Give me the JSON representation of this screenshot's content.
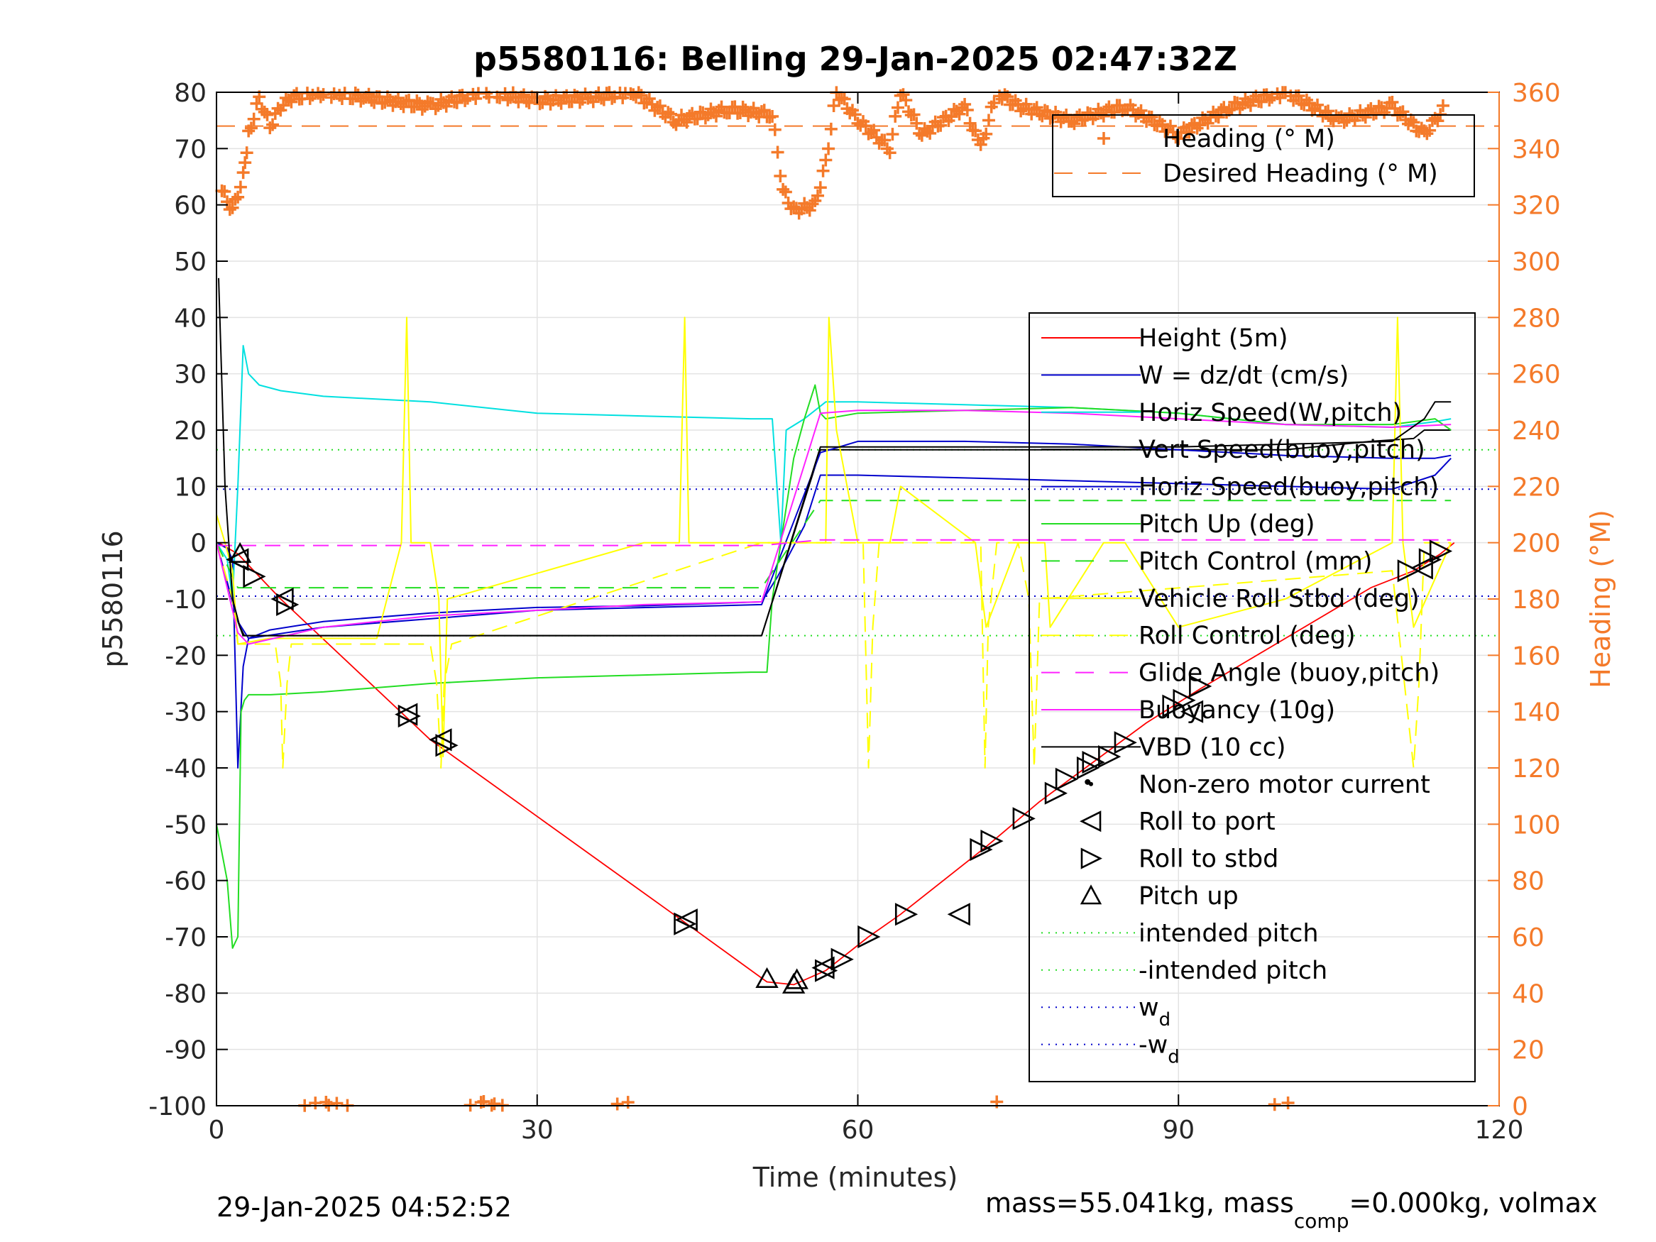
{
  "chart_data": {
    "type": "line",
    "title": "p5580116: Belling 29-Jan-2025 02:47:32Z",
    "xlabel": "Time (minutes)",
    "ylabel": "p5580116",
    "y2label": "Heading (°M)",
    "xlim": [
      0,
      120
    ],
    "ylim": [
      -100,
      80
    ],
    "y2lim": [
      0,
      360
    ],
    "xticks": [
      0,
      30,
      60,
      90,
      120
    ],
    "yticks": [
      -100,
      -90,
      -80,
      -70,
      -60,
      -50,
      -40,
      -30,
      -20,
      -10,
      0,
      10,
      20,
      30,
      40,
      50,
      60,
      70,
      80
    ],
    "y2ticks": [
      0,
      20,
      40,
      60,
      80,
      100,
      120,
      140,
      160,
      180,
      200,
      220,
      240,
      260,
      280,
      300,
      320,
      340,
      360
    ],
    "grid": true,
    "footer_left": "29-Jan-2025 04:52:52",
    "footer_right_main": "mass=55.041kg, mass",
    "footer_right_sub": "comp",
    "footer_right_tail": "=0.000kg, volmax",
    "colors": {
      "heading": "#f47a2a",
      "height": "#ff0000",
      "w": "#0000cc",
      "horiz_w": "#00e0e0",
      "vert_buoy": "#000000",
      "pitch": "#22dd22",
      "roll": "#ffff00",
      "glide": "#ff22ff",
      "vbd": "#000000"
    },
    "legend_heading": [
      {
        "label": "Heading (° M)",
        "style": "plus",
        "color": "#f47a2a"
      },
      {
        "label": "Desired Heading (° M)",
        "style": "dash",
        "color": "#f47a2a"
      }
    ],
    "legend_main": [
      {
        "label": "Height (5m)",
        "style": "solid",
        "color": "#ff0000"
      },
      {
        "label": "W = dz/dt (cm/s)",
        "style": "solid",
        "color": "#0000cc"
      },
      {
        "label": "Horiz Speed(W,pitch)",
        "style": "solid",
        "color": "#00e0e0"
      },
      {
        "label": "Vert Speed(buoy,pitch)",
        "style": "solid",
        "color": "#000000"
      },
      {
        "label": "Horiz Speed(buoy,pitch)",
        "style": "solid",
        "color": "#0000cc"
      },
      {
        "label": "Pitch Up (deg)",
        "style": "solid",
        "color": "#22dd22"
      },
      {
        "label": "Pitch Control (mm)",
        "style": "dash",
        "color": "#22dd22"
      },
      {
        "label": "Vehicle Roll Stbd (deg)",
        "style": "solid",
        "color": "#ffff00"
      },
      {
        "label": "Roll Control (deg)",
        "style": "dash",
        "color": "#ffff00"
      },
      {
        "label": "Glide Angle (buoy,pitch)",
        "style": "dash",
        "color": "#ff22ff"
      },
      {
        "label": "Buoyancy (10g)",
        "style": "solid",
        "color": "#ff22ff"
      },
      {
        "label": "VBD (10 cc)",
        "style": "solid",
        "color": "#000000"
      },
      {
        "label": "Non-zero motor current",
        "style": "dot",
        "color": "#000000"
      },
      {
        "label": "Roll to port",
        "style": "tri-left",
        "color": "#000000"
      },
      {
        "label": "Roll to stbd",
        "style": "tri-right",
        "color": "#000000"
      },
      {
        "label": "Pitch up",
        "style": "tri-up",
        "color": "#000000"
      },
      {
        "label": "intended pitch",
        "style": "dotted",
        "color": "#22dd22"
      },
      {
        "label": "-intended pitch",
        "style": "dotted",
        "color": "#22dd22"
      },
      {
        "label": "w",
        "sub": "d",
        "style": "dotted",
        "color": "#0000cc"
      },
      {
        "label": "-w",
        "sub": "d",
        "style": "dotted",
        "color": "#0000cc"
      }
    ],
    "reference_lines": [
      {
        "name": "intended pitch",
        "y": 16.5
      },
      {
        "name": "-intended pitch",
        "y": -16.5
      },
      {
        "name": "w_d",
        "y": 9.5
      },
      {
        "name": "-w_d",
        "y": -9.5
      }
    ],
    "desired_heading": 348,
    "series": [
      {
        "name": "Height (5m)",
        "x": [
          0.2,
          2,
          6,
          20,
          43.5,
          51.5,
          54,
          57,
          61,
          64,
          72,
          77,
          82,
          87,
          92,
          100,
          108,
          112,
          114.5,
          115.8
        ],
        "y": [
          0,
          -2,
          -10,
          -35,
          -67,
          -78,
          -78.5,
          -76,
          -70,
          -66,
          -54,
          -46,
          -39,
          -32,
          -26,
          -17,
          -8,
          -5,
          -2,
          0
        ]
      },
      {
        "name": "W = dz/dt (cm/s)",
        "x": [
          0,
          1,
          1.5,
          2,
          2.5,
          3,
          5,
          10,
          20,
          30,
          40,
          51,
          52.5,
          55,
          56.5,
          60,
          70,
          80,
          90,
          100,
          110,
          114,
          115.5
        ],
        "y": [
          0,
          -1,
          -3,
          -40,
          -22,
          -17,
          -15.5,
          -14,
          -12.5,
          -11.5,
          -11.2,
          -10.5,
          -6,
          3,
          12,
          12,
          11.5,
          11,
          10.5,
          10,
          9.5,
          12,
          15
        ]
      },
      {
        "name": "Horiz Speed(W,pitch)",
        "x": [
          0,
          1,
          1.5,
          2,
          2.5,
          3,
          4,
          6,
          10,
          20,
          30,
          40,
          50,
          52,
          52.8,
          53.3,
          55,
          57,
          60,
          70,
          80,
          90,
          100,
          110,
          114,
          115.5
        ],
        "y": [
          0,
          -3,
          -10,
          10,
          35,
          30,
          28,
          27,
          26,
          25,
          23,
          22.5,
          22,
          22,
          0,
          20,
          22,
          25,
          25,
          24.5,
          24,
          23,
          21,
          20.5,
          21.5,
          22
        ]
      },
      {
        "name": "Vert Speed(buoy,pitch)",
        "x": [
          0,
          2,
          2.5,
          30,
          51,
          56.5,
          70,
          100,
          108,
          112,
          113,
          115.5
        ],
        "y": [
          0,
          -14,
          -16.5,
          -16.5,
          -16.5,
          16.5,
          16.5,
          16.5,
          18,
          18.5,
          20,
          20
        ]
      },
      {
        "name": "Horiz Speed(buoy,pitch)",
        "x": [
          0,
          2,
          3,
          10,
          30,
          51,
          56.5,
          60,
          70,
          80,
          90,
          100,
          110,
          114,
          115.5
        ],
        "y": [
          0,
          -14,
          -17,
          -15,
          -12,
          -11,
          16,
          18,
          18,
          17.5,
          16.5,
          15.5,
          15,
          15,
          15.5
        ]
      },
      {
        "name": "Pitch Up (deg)",
        "x": [
          0,
          1,
          1.5,
          2,
          2.3,
          2.6,
          3,
          5,
          10,
          20,
          30,
          40,
          50,
          51.5,
          52,
          54,
          55,
          55.5,
          56,
          56.5,
          57,
          60,
          70,
          80,
          90,
          100,
          110,
          114,
          115.5
        ],
        "y": [
          -50,
          -60,
          -72,
          -70,
          -30,
          -28,
          -27,
          -27,
          -26.5,
          -25,
          -24,
          -23.5,
          -23,
          -23,
          -10,
          15,
          22,
          25,
          28,
          23,
          22,
          23,
          23.5,
          24,
          23,
          21,
          21,
          22,
          20
        ]
      },
      {
        "name": "Pitch Control (mm)",
        "x": [
          0,
          2,
          10,
          20,
          30,
          40,
          51,
          56.5,
          70,
          90,
          110,
          115.5
        ],
        "y": [
          0,
          -8,
          -8,
          -8,
          -8,
          -8,
          -8,
          7.5,
          7.5,
          7.5,
          7.5,
          7.5
        ]
      },
      {
        "name": "Vehicle Roll Stbd (deg)",
        "x": [
          0,
          0.8,
          1.5,
          2,
          5,
          15,
          17.3,
          17.8,
          18.2,
          20,
          20.8,
          21.2,
          21.6,
          40,
          43.3,
          43.8,
          44.2,
          50,
          57,
          57.3,
          58,
          60,
          63,
          64,
          71,
          72,
          75,
          77.5,
          78,
          83,
          85,
          90,
          100,
          110,
          110.5,
          111,
          112,
          115.5
        ],
        "y": [
          5,
          0,
          -5,
          -18,
          -17,
          -17,
          0,
          40,
          0,
          0,
          -10,
          -38,
          -10,
          0,
          0,
          40,
          0,
          0,
          0,
          40,
          20,
          0,
          0,
          10,
          0,
          -15,
          0,
          0,
          -15,
          0,
          0,
          -15,
          -10,
          0,
          40,
          0,
          -15,
          0
        ]
      },
      {
        "name": "Roll Control (deg)",
        "x": [
          0,
          1.5,
          2,
          5.5,
          6,
          6.2,
          6.6,
          7,
          20,
          20.6,
          21,
          21.3,
          22,
          51,
          56.5,
          60.5,
          61,
          61.4,
          62,
          71.5,
          71.9,
          72.2,
          73,
          75,
          76,
          76.5,
          77,
          110,
          112,
          112.5,
          113,
          115.5
        ],
        "y": [
          0,
          -10,
          -18,
          -18,
          -25,
          -40,
          -25,
          -18,
          -18,
          -25,
          -40,
          -25,
          -18,
          0,
          0,
          0,
          -40,
          -15,
          0,
          0,
          -40,
          -15,
          0,
          0,
          -10,
          -40,
          -10,
          -5,
          -40,
          -25,
          0,
          0
        ]
      },
      {
        "name": "Glide Angle (buoy,pitch)",
        "x": [
          0,
          2,
          30,
          51,
          56.5,
          90,
          115.5
        ],
        "y": [
          -0.5,
          -0.5,
          -0.5,
          -0.5,
          0.5,
          0.5,
          0.5
        ]
      },
      {
        "name": "Buoyancy (10g)",
        "x": [
          0,
          2,
          3,
          10,
          20,
          30,
          40,
          51,
          56.5,
          60,
          70,
          80,
          90,
          100,
          110,
          115.5
        ],
        "y": [
          0,
          -16,
          -18,
          -15,
          -13,
          -12,
          -11,
          -10.5,
          23,
          23.5,
          23.5,
          23,
          22,
          21,
          20.5,
          21
        ]
      },
      {
        "name": "VBD (10 cc)",
        "x": [
          0.2,
          0.8,
          1.5,
          2.2,
          2.6,
          3,
          10,
          30,
          51,
          56.5,
          70,
          90,
          110,
          113,
          114,
          115.5
        ],
        "y": [
          47,
          10,
          -10,
          -15,
          -16.5,
          -16.5,
          -16.5,
          -16.5,
          -16.5,
          17,
          17,
          17,
          18,
          22,
          25,
          25
        ]
      },
      {
        "name": "Heading (° M)",
        "axis": "right",
        "x": [
          0.5,
          1.5,
          2.5,
          3,
          4,
          5,
          6,
          7,
          10,
          14,
          20,
          25,
          30,
          35,
          39,
          43,
          48,
          52,
          53,
          54,
          56,
          57,
          58,
          60,
          63,
          64,
          66,
          70,
          71.5,
          73,
          75,
          80,
          85,
          90,
          95,
          100,
          105,
          110,
          113,
          115
        ],
        "y": [
          325,
          318,
          330,
          345,
          358,
          348,
          355,
          358,
          360,
          358,
          355,
          360,
          357,
          358,
          360,
          350,
          354,
          352,
          325,
          318,
          320,
          335,
          360,
          350,
          340,
          360,
          345,
          355,
          340,
          360,
          355,
          350,
          355,
          345,
          355,
          360,
          350,
          355,
          345,
          355
        ]
      }
    ],
    "markers_port": [
      [
        2.0,
        -3
      ],
      [
        6.2,
        -10
      ],
      [
        17.8,
        -30.5
      ],
      [
        21.0,
        -35
      ],
      [
        44.0,
        -67
      ],
      [
        56.8,
        -75.5
      ],
      [
        69.5,
        -66
      ],
      [
        91.3,
        -30
      ],
      [
        112.8,
        -4.5
      ]
    ],
    "markers_stbd": [
      [
        3.5,
        -6
      ],
      [
        6.6,
        -11
      ],
      [
        18.0,
        -30.8
      ],
      [
        21.5,
        -36
      ],
      [
        43.8,
        -67.7
      ],
      [
        57.0,
        -76
      ],
      [
        58.5,
        -74
      ],
      [
        61.0,
        -70
      ],
      [
        64.5,
        -66
      ],
      [
        71.5,
        -54.5
      ],
      [
        72.5,
        -53
      ],
      [
        75.5,
        -49
      ],
      [
        78.5,
        -44.5
      ],
      [
        79.5,
        -42
      ],
      [
        81.5,
        -40
      ],
      [
        82.0,
        -39
      ],
      [
        83.5,
        -38
      ],
      [
        85.0,
        -35.5
      ],
      [
        89.5,
        -29
      ],
      [
        90.5,
        -28
      ],
      [
        92.0,
        -25.5
      ],
      [
        111.5,
        -5
      ],
      [
        113.5,
        -3
      ],
      [
        114.5,
        -1.5
      ]
    ],
    "markers_pitchup": [
      [
        2.2,
        -2
      ],
      [
        51.5,
        -77.5
      ],
      [
        54.0,
        -78.5
      ],
      [
        54.3,
        -77.7
      ]
    ],
    "motor_dots": [
      [
        81.5,
        -42.5
      ]
    ]
  }
}
